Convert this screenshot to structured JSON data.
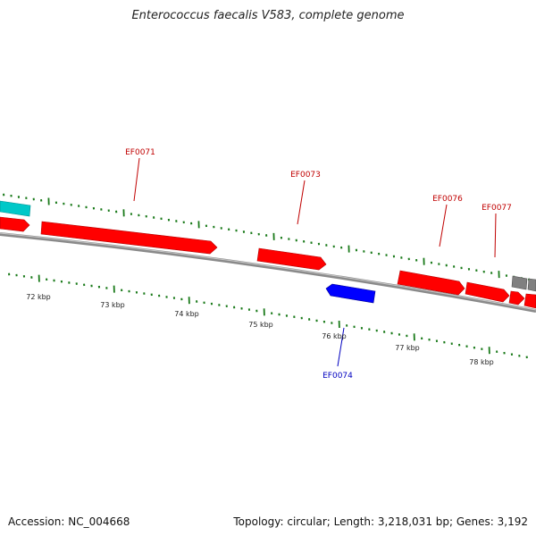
{
  "title": "Enterococcus faecalis V583, complete genome",
  "footer": {
    "accession": "Accession: NC_004668",
    "topology": "Topology: circular; Length: 3,218,031 bp; Genes: 3,192"
  },
  "colors": {
    "forward_gene": "#ff0000",
    "reverse_gene": "#0000ff",
    "other_gene_cyan": "#00c8c8",
    "other_gene_gray": "#808080",
    "backbone": "#888888",
    "tick": "#1a7a1a",
    "forward_label": "#c00000",
    "reverse_label": "#0000c0",
    "scale_label": "#222222"
  },
  "scale_labels": [
    "72 kbp",
    "73 kbp",
    "74 kbp",
    "75 kbp",
    "76 kbp",
    "77 kbp",
    "78 kbp"
  ],
  "gene_labels": [
    {
      "name": "EF0071",
      "strand": "forward"
    },
    {
      "name": "EF0073",
      "strand": "forward"
    },
    {
      "name": "EF0076",
      "strand": "forward"
    },
    {
      "name": "EF0077",
      "strand": "forward"
    },
    {
      "name": "EF0074",
      "strand": "reverse"
    }
  ]
}
